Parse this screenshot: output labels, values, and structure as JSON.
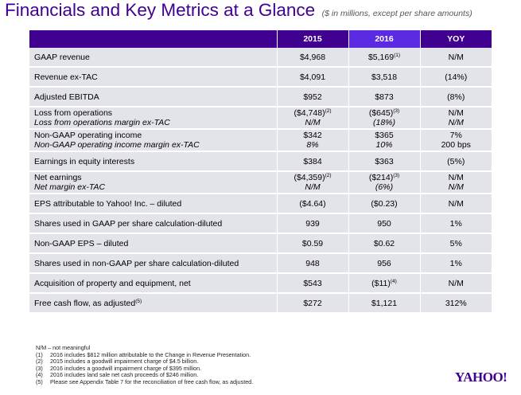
{
  "header": {
    "title": "Financials and Key Metrics at a Glance",
    "subtitle": "($ in millions, except per share amounts)"
  },
  "table": {
    "columns": [
      "",
      "2015",
      "2016",
      "YOY"
    ],
    "rows": [
      {
        "label": "GAAP revenue",
        "y2015": "$4,968",
        "y2016": "$5,169",
        "y2016_note": "(1)",
        "yoy": "N/M"
      },
      {
        "label": "Revenue ex-TAC",
        "y2015": "$4,091",
        "y2016": "$3,518",
        "yoy": "(14%)"
      },
      {
        "label": "Adjusted EBITDA",
        "y2015": "$952",
        "y2016": "$873",
        "yoy": "(8%)"
      },
      {
        "label": "Loss from operations",
        "sublabel": "Loss from operations margin ex-TAC",
        "y2015": "($4,748)",
        "y2015_note": "(2)",
        "y2015_sub": "N/M",
        "y2016": "($645)",
        "y2016_note": "(3)",
        "y2016_sub": "(18%)",
        "yoy": "N/M",
        "yoy_sub": "N/M"
      },
      {
        "label": "Non-GAAP operating income",
        "sublabel": "Non-GAAP operating income margin ex-TAC",
        "y2015": "$342",
        "y2015_sub": "8%",
        "y2016": "$365",
        "y2016_sub": "10%",
        "yoy": "7%",
        "yoy_sub": "200 bps"
      },
      {
        "label": "Earnings in equity interests",
        "y2015": "$384",
        "y2016": "$363",
        "yoy": "(5%)"
      },
      {
        "label": "Net earnings",
        "sublabel": "Net margin ex-TAC",
        "y2015": "($4,359)",
        "y2015_note": "(2)",
        "y2015_sub": "N/M",
        "y2016": "($214)",
        "y2016_note": "(3)",
        "y2016_sub": "(6%)",
        "yoy": "N/M",
        "yoy_sub": "N/M"
      },
      {
        "label": "EPS attributable to Yahoo! Inc. – diluted",
        "y2015": "($4.64)",
        "y2016": "($0.23)",
        "yoy": "N/M"
      },
      {
        "label": "Shares used in GAAP per share calculation-diluted",
        "y2015": "939",
        "y2016": "950",
        "yoy": "1%"
      },
      {
        "label": "Non-GAAP EPS – diluted",
        "y2015": "$0.59",
        "y2016": "$0.62",
        "yoy": "5%"
      },
      {
        "label": "Shares used in non-GAAP per share calculation-diluted",
        "y2015": "948",
        "y2016": "956",
        "yoy": "1%"
      },
      {
        "label": "Acquisition of property and equipment, net",
        "y2015": "$543",
        "y2016": "($11)",
        "y2016_note": "(4)",
        "yoy": "N/M"
      },
      {
        "label": "Free cash flow, as adjusted",
        "label_note": "(5)",
        "y2015": "$272",
        "y2016": "$1,121",
        "yoy": "312%"
      }
    ]
  },
  "notes": {
    "nm": "N/M – not meaningful",
    "items": [
      {
        "key": "(1)",
        "text": "2016 includes $812 million attributable to the Change in Revenue Presentation."
      },
      {
        "key": "(2)",
        "text": "2015 includes a goodwill impairment charge of $4.5 billion."
      },
      {
        "key": "(3)",
        "text": "2016 includes a goodwill impairment charge of $395 million."
      },
      {
        "key": "(4)",
        "text": "2016 includes land sale net cash proceeds of $246 million."
      },
      {
        "key": "(5)",
        "text": "Please see Appendix Table 7 for the reconciliation of free cash flow, as adjusted."
      }
    ]
  },
  "logo": "YAHOO!",
  "colors": {
    "header": "#400090",
    "header_2016": "#5b2be3",
    "row": "#e3e3ea"
  }
}
